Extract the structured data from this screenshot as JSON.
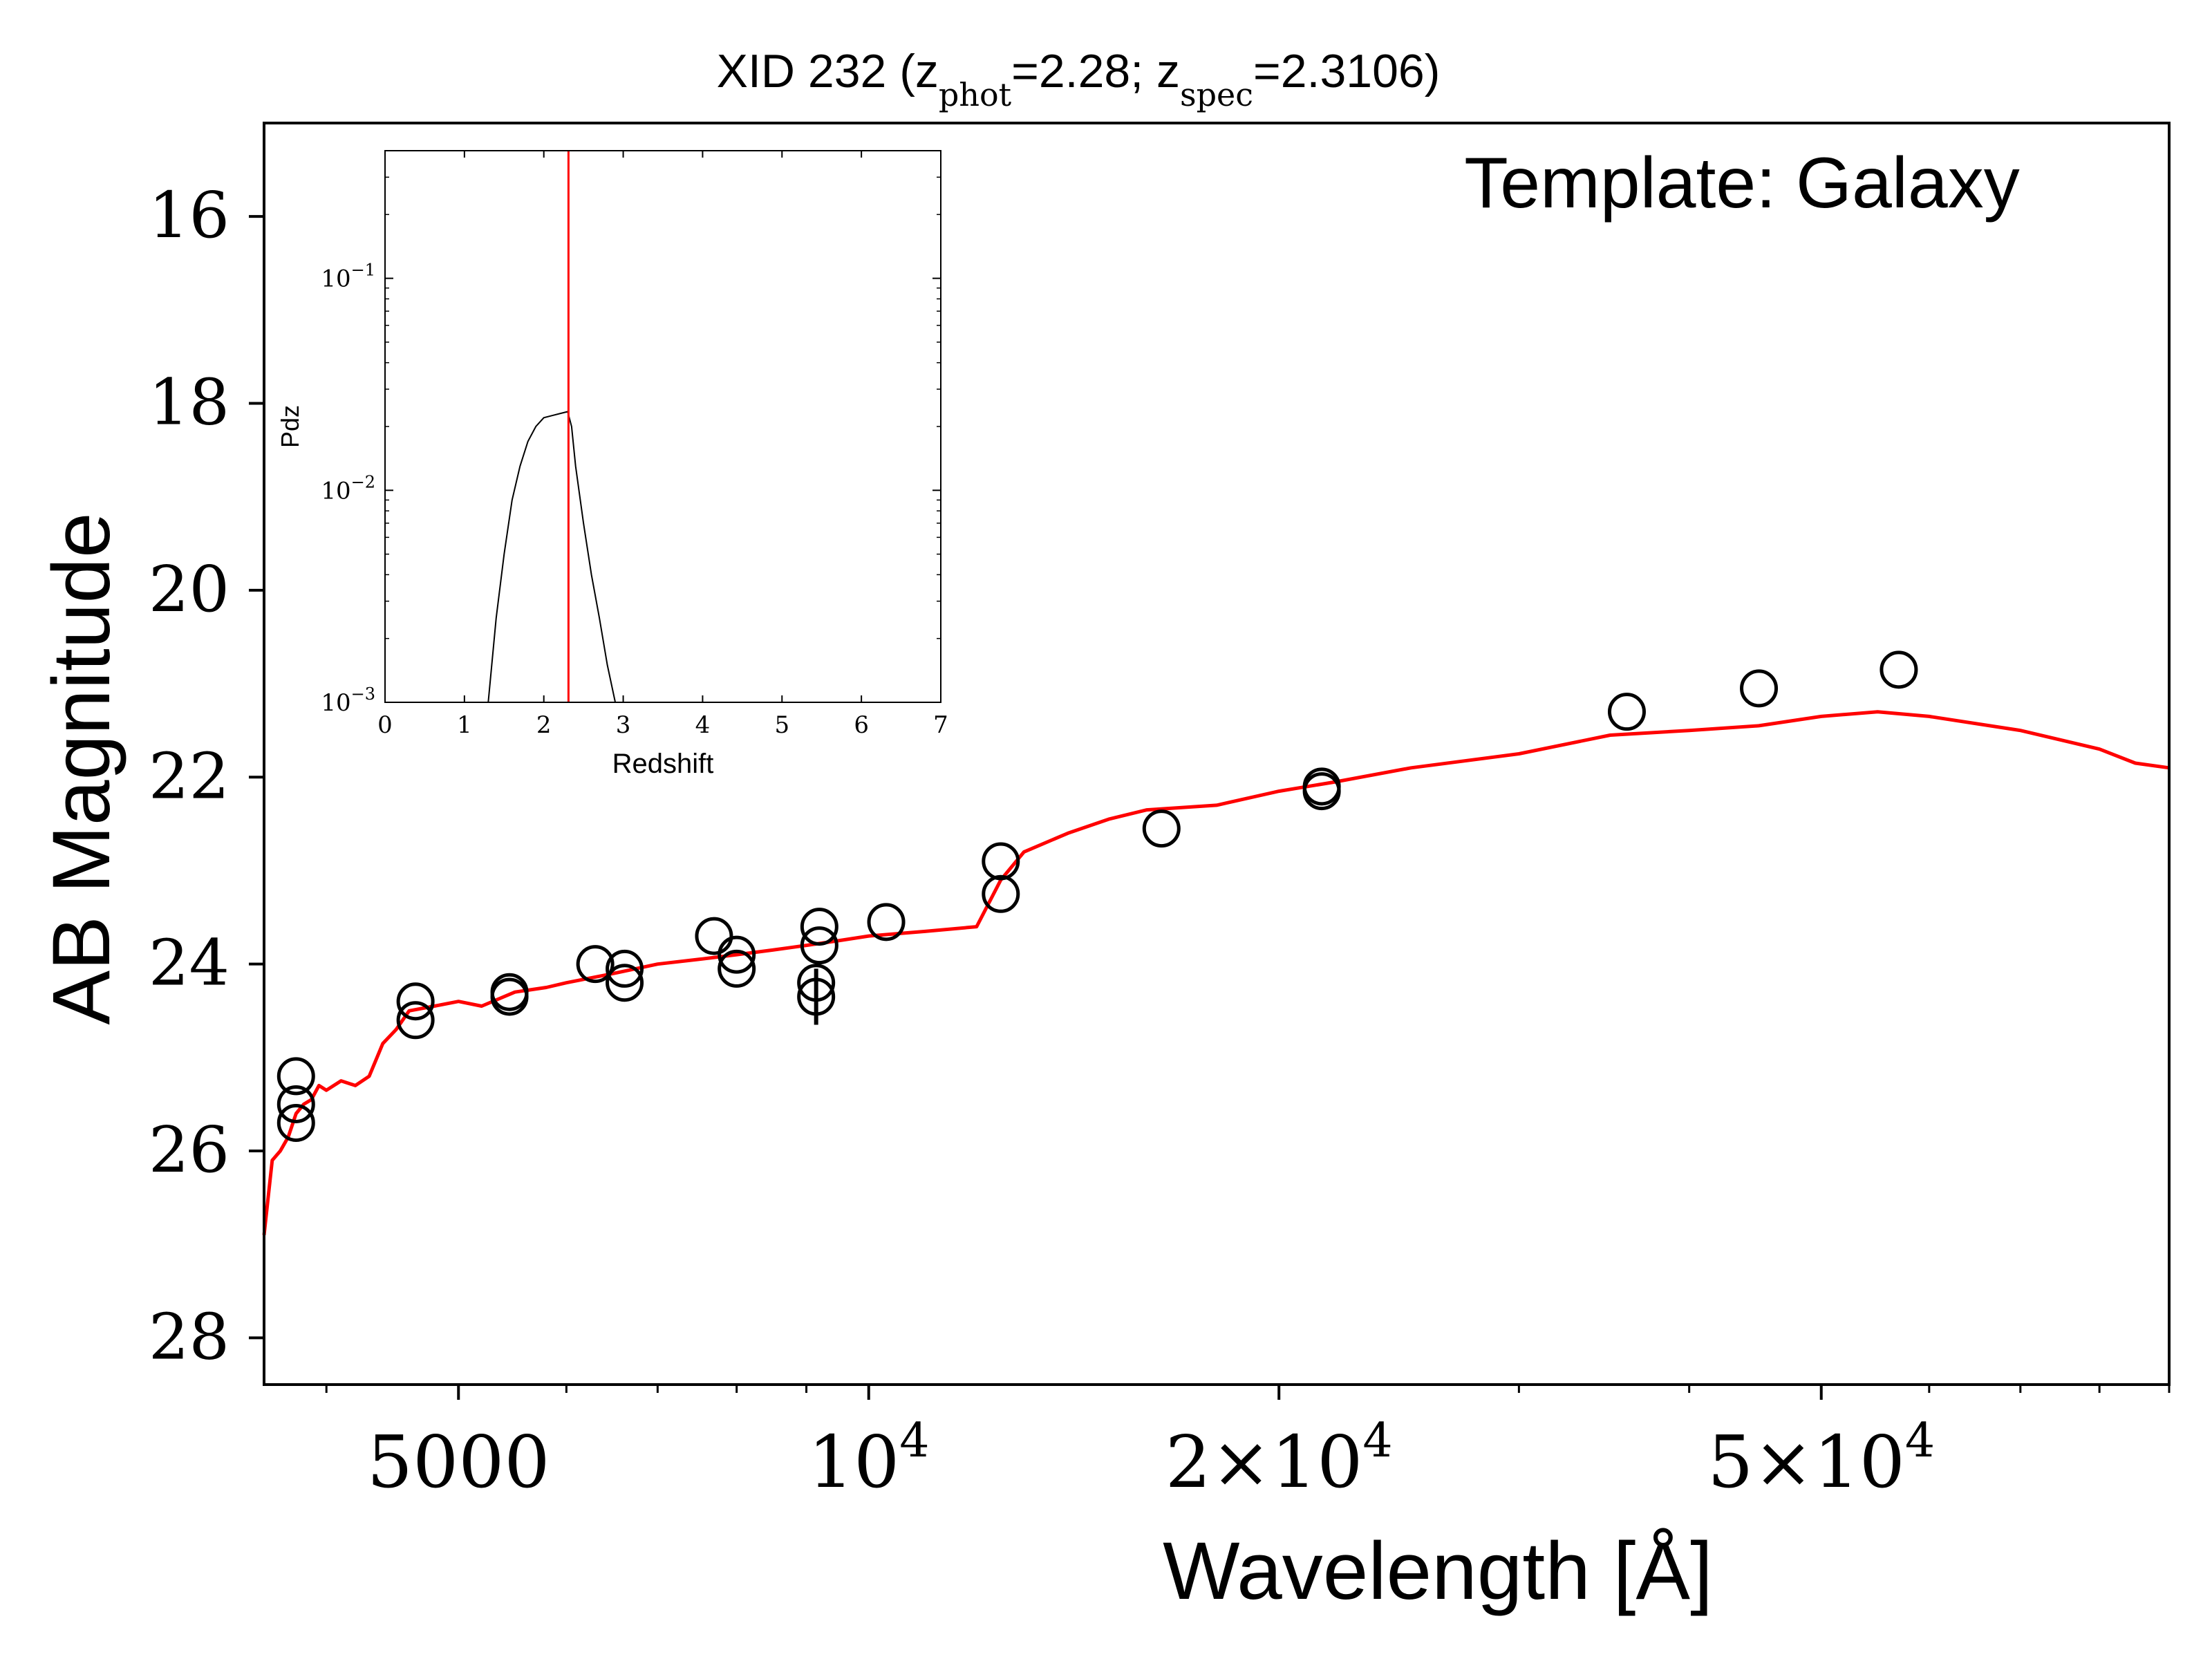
{
  "chart_data": [
    {
      "type": "scatter",
      "title": {
        "prefix": "XID 232 (z",
        "phot_sub": "phot",
        "phot_val": "=2.28; z",
        "spec_sub": "spec",
        "spec_val": "=2.3106)"
      },
      "xlabel": "Wavelength [Å]",
      "ylabel": "AB Magnitude",
      "annotation": "Template: Galaxy",
      "x_scale": "log",
      "xlim": [
        3600,
        90000
      ],
      "ylim": [
        28.5,
        15.0
      ],
      "y_inverted": true,
      "yticks": [
        16,
        18,
        20,
        22,
        24,
        26,
        28
      ],
      "xticks": [
        {
          "value": 5000,
          "base": "5000",
          "exp": ""
        },
        {
          "value": 10000,
          "base": "10",
          "exp": "4"
        },
        {
          "value": 20000,
          "base": "2×10",
          "exp": "4"
        },
        {
          "value": 50000,
          "base": "5×10",
          "exp": "4"
        }
      ],
      "colors": {
        "template": "#ff0000",
        "points": "#000000"
      },
      "series": [
        {
          "kind": "photometry",
          "marker": "open-circle",
          "points": [
            {
              "x": 3800,
              "y": 25.2
            },
            {
              "x": 3800,
              "y": 25.5
            },
            {
              "x": 3800,
              "y": 25.7
            },
            {
              "x": 4650,
              "y": 24.4
            },
            {
              "x": 4650,
              "y": 24.6
            },
            {
              "x": 5450,
              "y": 24.3
            },
            {
              "x": 5450,
              "y": 24.35
            },
            {
              "x": 6300,
              "y": 24.0
            },
            {
              "x": 6620,
              "y": 24.05
            },
            {
              "x": 6620,
              "y": 24.2
            },
            {
              "x": 7700,
              "y": 23.7
            },
            {
              "x": 8000,
              "y": 23.9
            },
            {
              "x": 8000,
              "y": 24.05
            },
            {
              "x": 9200,
              "y": 23.6
            },
            {
              "x": 9200,
              "y": 23.8
            },
            {
              "x": 9150,
              "y": 24.2
            },
            {
              "x": 9150,
              "y": 24.35,
              "err": 0.3
            },
            {
              "x": 10300,
              "y": 23.55
            },
            {
              "x": 12500,
              "y": 22.9
            },
            {
              "x": 12500,
              "y": 23.25
            },
            {
              "x": 16400,
              "y": 22.55
            },
            {
              "x": 21500,
              "y": 22.1
            },
            {
              "x": 21500,
              "y": 22.15
            },
            {
              "x": 36000,
              "y": 21.3
            },
            {
              "x": 45000,
              "y": 21.05
            },
            {
              "x": 57000,
              "y": 20.85
            }
          ]
        },
        {
          "kind": "template",
          "line": "red",
          "x": [
            3600,
            3650,
            3700,
            3750,
            3800,
            3850,
            3900,
            3950,
            4000,
            4100,
            4200,
            4300,
            4400,
            4500,
            4600,
            4800,
            5000,
            5200,
            5500,
            5800,
            6000,
            6500,
            7000,
            7500,
            8000,
            8500,
            9000,
            9500,
            10000,
            11000,
            12000,
            12500,
            13000,
            14000,
            15000,
            16000,
            18000,
            20000,
            22000,
            25000,
            30000,
            35000,
            40000,
            45000,
            50000,
            55000,
            60000,
            70000,
            80000,
            85000,
            90000
          ],
          "y": [
            26.9,
            26.1,
            26.0,
            25.85,
            25.6,
            25.5,
            25.45,
            25.3,
            25.35,
            25.25,
            25.3,
            25.2,
            24.85,
            24.7,
            24.5,
            24.45,
            24.4,
            24.45,
            24.3,
            24.25,
            24.2,
            24.1,
            24.0,
            23.95,
            23.9,
            23.85,
            23.8,
            23.75,
            23.7,
            23.65,
            23.6,
            23.1,
            22.8,
            22.6,
            22.45,
            22.35,
            22.3,
            22.15,
            22.05,
            21.9,
            21.75,
            21.55,
            21.5,
            21.45,
            21.35,
            21.3,
            21.35,
            21.5,
            21.7,
            21.85,
            21.9
          ]
        }
      ]
    },
    {
      "type": "line",
      "xlabel": "Redshift",
      "ylabel": "Pdz",
      "x_scale": "linear",
      "y_scale": "log",
      "xlim": [
        0,
        7
      ],
      "ylim": [
        0.001,
        0.4
      ],
      "xticks": [
        0,
        1,
        2,
        3,
        4,
        5,
        6,
        7
      ],
      "yticks": [
        {
          "value": 0.1,
          "base": "10",
          "exp": "−1"
        },
        {
          "value": 0.01,
          "base": "10",
          "exp": "−2"
        },
        {
          "value": 0.001,
          "base": "10",
          "exp": "−3"
        }
      ],
      "marker_line": {
        "x": 2.3106,
        "color": "#ff0000"
      },
      "series": [
        {
          "x": [
            1.3,
            1.4,
            1.5,
            1.6,
            1.7,
            1.8,
            1.9,
            2.0,
            2.1,
            2.2,
            2.3,
            2.35,
            2.4,
            2.5,
            2.6,
            2.7,
            2.8,
            2.9
          ],
          "y": [
            0.001,
            0.0025,
            0.005,
            0.009,
            0.013,
            0.017,
            0.02,
            0.022,
            0.0225,
            0.023,
            0.0235,
            0.02,
            0.013,
            0.007,
            0.004,
            0.0025,
            0.0015,
            0.001
          ]
        }
      ]
    }
  ]
}
